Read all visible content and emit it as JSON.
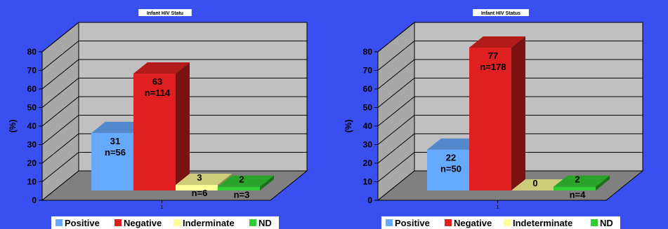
{
  "page": {
    "background": "#3a4ff0"
  },
  "chart_data": [
    {
      "type": "bar",
      "style": "3d-column",
      "title": "Infant HIV Statu",
      "ylabel": "(%)",
      "ylim": [
        0,
        80
      ],
      "yticks": [
        "0",
        "10",
        "20",
        "30",
        "40",
        "50",
        "60",
        "70",
        "80"
      ],
      "categories": [
        "1"
      ],
      "grid": true,
      "legend_position": "bottom",
      "series": [
        {
          "name": "Positive",
          "values": [
            31
          ],
          "label": "31",
          "n_label": "n=56",
          "color": "#66aaff"
        },
        {
          "name": "Negative",
          "values": [
            63
          ],
          "label": "63",
          "n_label": "n=114",
          "color": "#e02020"
        },
        {
          "name": "Inderminate",
          "values": [
            3
          ],
          "label": "3",
          "n_label": "n=6",
          "color": "#ffff99"
        },
        {
          "name": "ND",
          "values": [
            2
          ],
          "label": "2",
          "n_label": "n=3",
          "color": "#33cc33"
        }
      ]
    },
    {
      "type": "bar",
      "style": "3d-column",
      "title": "Infant HIV Status",
      "ylabel": "(%)",
      "ylim": [
        0,
        80
      ],
      "yticks": [
        "0",
        "10",
        "20",
        "30",
        "40",
        "50",
        "60",
        "70",
        "80"
      ],
      "categories": [
        "1"
      ],
      "grid": true,
      "legend_position": "bottom",
      "series": [
        {
          "name": "Positive",
          "values": [
            22
          ],
          "label": "22",
          "n_label": "n=50",
          "color": "#66aaff"
        },
        {
          "name": "Negative",
          "values": [
            77
          ],
          "label": "77",
          "n_label": "n=178",
          "color": "#e02020"
        },
        {
          "name": "Indeterminate",
          "values": [
            0
          ],
          "label": "0",
          "n_label": "",
          "color": "#ffff99"
        },
        {
          "name": "ND",
          "values": [
            2
          ],
          "label": "2",
          "n_label": "n=4",
          "color": "#33cc33"
        }
      ]
    }
  ]
}
